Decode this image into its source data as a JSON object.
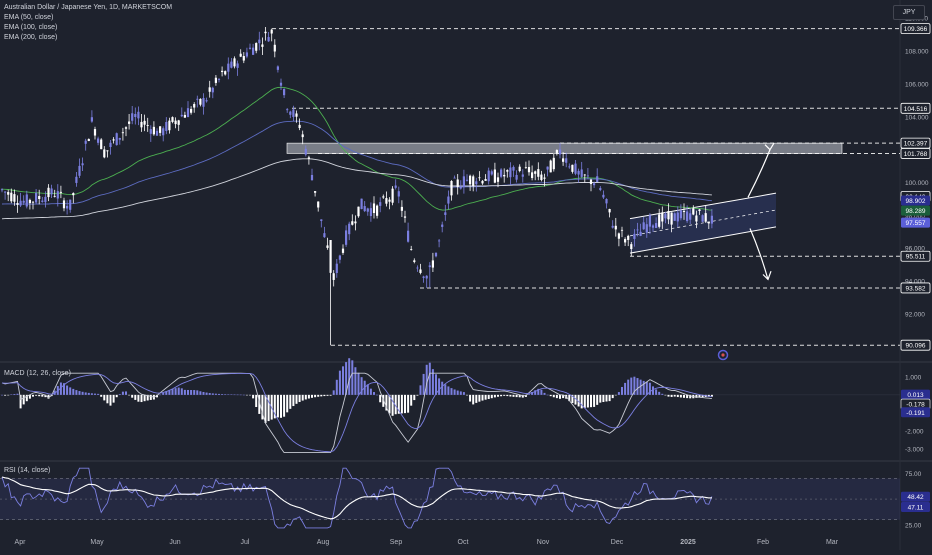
{
  "header": {
    "title": "Australian Dollar / Japanese Yen, 1D, MARKETSCOM",
    "currency": "JPY",
    "indicators": [
      "EMA (50, close)",
      "EMA (100, close)",
      "EMA (200, close)"
    ]
  },
  "chart_data": [
    {
      "type": "candlestick",
      "title": "Australian Dollar / Japanese Yen, 1D, MARKETSCOM",
      "x_axis_labels": [
        "Apr",
        "May",
        "Jun",
        "Jul",
        "Aug",
        "Sep",
        "Oct",
        "Nov",
        "Dec",
        "2025",
        "Feb",
        "Mar"
      ],
      "y_ticks": [
        92.0,
        94.0,
        96.0,
        98.0,
        100.0,
        102.0,
        104.0,
        106.0,
        108.0,
        110.0
      ],
      "ylim": [
        89.5,
        110.5
      ],
      "price_tags": [
        {
          "value": "109.366",
          "style": "outline"
        },
        {
          "value": "104.516",
          "style": "outline"
        },
        {
          "value": "102.397",
          "style": "outline"
        },
        {
          "value": "101.768",
          "style": "outline"
        },
        {
          "value": "99.149",
          "style": "outline"
        },
        {
          "value": "98.902",
          "style": "fill",
          "color": "#2a2e8f"
        },
        {
          "value": "98.289",
          "style": "fill",
          "color": "#1b5e3b"
        },
        {
          "value": "97.557",
          "style": "fill",
          "color": "#5b5fd8"
        },
        {
          "value": "95.511",
          "style": "outline"
        },
        {
          "value": "93.582",
          "style": "outline"
        },
        {
          "value": "90.096",
          "style": "outline"
        }
      ],
      "horizontal_levels": [
        109.366,
        104.516,
        102.397,
        101.768,
        95.511,
        93.582,
        90.096
      ],
      "resistance_zone": [
        101.768,
        102.397
      ],
      "series": [
        {
          "name": "EMA (50, close)",
          "color": "#4caf50"
        },
        {
          "name": "EMA (100, close)",
          "color": "#5c6bc0"
        },
        {
          "name": "EMA (200, close)",
          "color": "#d1d4dc"
        }
      ],
      "candle_colors": {
        "up": "#7b7fe0",
        "down": "#ffffff"
      }
    },
    {
      "type": "line",
      "title": "MACD (12, 26, close)",
      "y_ticks": [
        1.0,
        -1.0,
        -2.0,
        -3.0
      ],
      "ylim": [
        -3.5,
        1.6
      ],
      "value_tags": [
        {
          "value": "0.013",
          "color": "#2a2e8f"
        },
        {
          "value": "-0.178",
          "color": "#1e222d"
        },
        {
          "value": "-0.191",
          "color": "#2a2e8f"
        }
      ],
      "series": [
        {
          "name": "MACD",
          "color": "#c8cbd4"
        },
        {
          "name": "Signal",
          "color": "#7b7fe0"
        },
        {
          "name": "Histogram",
          "colors": [
            "#7b7fe0",
            "#ffffff"
          ]
        }
      ]
    },
    {
      "type": "line",
      "title": "RSI (14, close)",
      "y_ticks": [
        75.0,
        25.0
      ],
      "ylim": [
        20,
        85
      ],
      "band": [
        30,
        70
      ],
      "value_tags": [
        {
          "value": "48.42",
          "color": "#2a2e8f"
        },
        {
          "value": "47.11",
          "color": "#2a2e8f"
        }
      ],
      "series": [
        {
          "name": "RSI",
          "color": "#7b7fe0"
        },
        {
          "name": "RSI MA",
          "color": "#ffffff"
        }
      ]
    }
  ],
  "panes": {
    "macd_label": "MACD (12, 26, close)",
    "rsi_label": "RSI (14, close)"
  },
  "theme": {
    "background": "#1e222d",
    "grid": "#2a2e39",
    "text": "#b2b5be",
    "accent": "#5b5fd8"
  },
  "icons": {
    "indicator_marker": "dot-icon"
  }
}
